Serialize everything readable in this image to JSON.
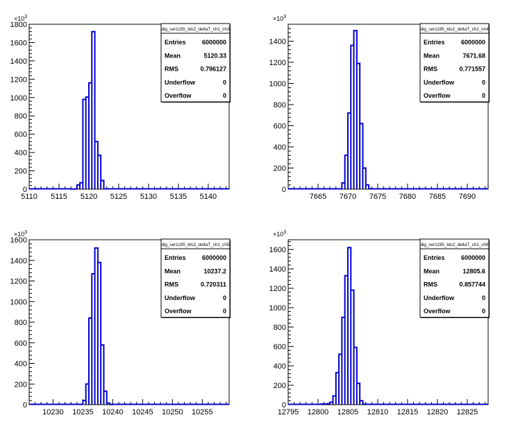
{
  "chart_data": [
    {
      "type": "histogram",
      "name": "dig_ser1195_tdc2_deltaT_ch1_ch3",
      "y_exponent": "3",
      "xlim": [
        5110,
        5143.5
      ],
      "ylim": [
        0,
        1800
      ],
      "x_ticks": [
        5110,
        5115,
        5120,
        5125,
        5130,
        5135,
        5140
      ],
      "x_tick_labels": [
        "5110",
        "5115",
        "5120",
        "5125",
        "5130",
        "5135",
        "5140"
      ],
      "y_ticks": [
        0,
        200,
        400,
        600,
        800,
        1000,
        1200,
        1400,
        1600,
        1800
      ],
      "y_tick_labels": [
        "0",
        "200",
        "400",
        "600",
        "800",
        "1000",
        "1200",
        "1400",
        "1600",
        "1800"
      ],
      "bins": [
        {
          "x0": 5117.0,
          "x1": 5118.0,
          "y": 2
        },
        {
          "x0": 5118.0,
          "x1": 5118.5,
          "y": 45
        },
        {
          "x0": 5118.5,
          "x1": 5119.0,
          "y": 70
        },
        {
          "x0": 5119.0,
          "x1": 5119.5,
          "y": 980
        },
        {
          "x0": 5119.5,
          "x1": 5120.0,
          "y": 1005
        },
        {
          "x0": 5120.0,
          "x1": 5120.5,
          "y": 1160
        },
        {
          "x0": 5120.5,
          "x1": 5121.0,
          "y": 1720
        },
        {
          "x0": 5121.0,
          "x1": 5121.5,
          "y": 520
        },
        {
          "x0": 5121.5,
          "x1": 5122.0,
          "y": 370
        },
        {
          "x0": 5122.0,
          "x1": 5122.5,
          "y": 95
        },
        {
          "x0": 5122.5,
          "x1": 5123.5,
          "y": 4
        }
      ],
      "stats": {
        "title": "dig_ser1195_tdc2_deltaT_ch1_ch3",
        "rows": [
          {
            "label": "Entries",
            "value": "6000000"
          },
          {
            "label": "Mean",
            "value": "5120.33"
          },
          {
            "label": "RMS",
            "value": "0.796127"
          },
          {
            "label": "Underflow",
            "value": "0"
          },
          {
            "label": "Overflow",
            "value": "0"
          }
        ]
      },
      "line_color": "#0000cc"
    },
    {
      "type": "histogram",
      "name": "dig_ser1195_tdc2_deltaT_ch1_ch4",
      "y_exponent": "3",
      "xlim": [
        7660,
        7693.5
      ],
      "ylim": [
        0,
        1560
      ],
      "x_ticks": [
        7665,
        7670,
        7675,
        7680,
        7685,
        7690
      ],
      "x_tick_labels": [
        "7665",
        "7670",
        "7675",
        "7680",
        "7685",
        "7690"
      ],
      "y_ticks": [
        0,
        200,
        400,
        600,
        800,
        1000,
        1200,
        1400
      ],
      "y_tick_labels": [
        "0",
        "200",
        "400",
        "600",
        "800",
        "1000",
        "1200",
        "1400"
      ],
      "bins": [
        {
          "x0": 7668.5,
          "x1": 7669.0,
          "y": 3
        },
        {
          "x0": 7669.0,
          "x1": 7669.5,
          "y": 60
        },
        {
          "x0": 7669.5,
          "x1": 7670.0,
          "y": 320
        },
        {
          "x0": 7670.0,
          "x1": 7670.5,
          "y": 720
        },
        {
          "x0": 7670.5,
          "x1": 7671.0,
          "y": 1360
        },
        {
          "x0": 7671.0,
          "x1": 7671.5,
          "y": 1500
        },
        {
          "x0": 7671.5,
          "x1": 7672.0,
          "y": 1190
        },
        {
          "x0": 7672.0,
          "x1": 7672.5,
          "y": 620
        },
        {
          "x0": 7672.5,
          "x1": 7673.0,
          "y": 200
        },
        {
          "x0": 7673.0,
          "x1": 7673.5,
          "y": 40
        },
        {
          "x0": 7673.5,
          "x1": 7674.0,
          "y": 4
        }
      ],
      "stats": {
        "title": "dig_ser1195_tdc2_deltaT_ch1_ch4",
        "rows": [
          {
            "label": "Entries",
            "value": "6000000"
          },
          {
            "label": "Mean",
            "value": "7671.68"
          },
          {
            "label": "RMS",
            "value": "0.771557"
          },
          {
            "label": "Underflow",
            "value": "0"
          },
          {
            "label": "Overflow",
            "value": "0"
          }
        ]
      },
      "line_color": "#0000cc"
    },
    {
      "type": "histogram",
      "name": "dig_ser1195_tdc2_deltaT_ch1_ch5",
      "y_exponent": "3",
      "xlim": [
        10226,
        10259.5
      ],
      "ylim": [
        0,
        1600
      ],
      "x_ticks": [
        10230,
        10235,
        10240,
        10245,
        10250,
        10255
      ],
      "x_tick_labels": [
        "10230",
        "10235",
        "10240",
        "10245",
        "10250",
        "10255"
      ],
      "y_ticks": [
        0,
        200,
        400,
        600,
        800,
        1000,
        1200,
        1400,
        1600
      ],
      "y_tick_labels": [
        "0",
        "200",
        "400",
        "600",
        "800",
        "1000",
        "1200",
        "1400",
        "1600"
      ],
      "bins": [
        {
          "x0": 10234.5,
          "x1": 10235.0,
          "y": 3
        },
        {
          "x0": 10235.0,
          "x1": 10235.5,
          "y": 40
        },
        {
          "x0": 10235.5,
          "x1": 10236.0,
          "y": 200
        },
        {
          "x0": 10236.0,
          "x1": 10236.5,
          "y": 840
        },
        {
          "x0": 10236.5,
          "x1": 10237.0,
          "y": 1270
        },
        {
          "x0": 10237.0,
          "x1": 10237.5,
          "y": 1520
        },
        {
          "x0": 10237.5,
          "x1": 10238.0,
          "y": 1380
        },
        {
          "x0": 10238.0,
          "x1": 10238.5,
          "y": 580
        },
        {
          "x0": 10238.5,
          "x1": 10239.0,
          "y": 130
        },
        {
          "x0": 10239.0,
          "x1": 10239.5,
          "y": 15
        },
        {
          "x0": 10239.5,
          "x1": 10240.0,
          "y": 2
        }
      ],
      "stats": {
        "title": "dig_ser1195_tdc2_deltaT_ch1_ch5",
        "rows": [
          {
            "label": "Entries",
            "value": "6000000"
          },
          {
            "label": "Mean",
            "value": "10237.2"
          },
          {
            "label": "RMS",
            "value": "0.720311"
          },
          {
            "label": "Underflow",
            "value": "0"
          },
          {
            "label": "Overflow",
            "value": "0"
          }
        ]
      },
      "line_color": "#0000cc"
    },
    {
      "type": "histogram",
      "name": "dig_ser1195_tdc2_deltaT_ch1_ch6",
      "y_exponent": "3",
      "xlim": [
        12795,
        12828.5
      ],
      "ylim": [
        0,
        1700
      ],
      "x_ticks": [
        12795,
        12800,
        12805,
        12810,
        12815,
        12820,
        12825
      ],
      "x_tick_labels": [
        "12795",
        "12800",
        "12805",
        "12810",
        "12815",
        "12820",
        "12825"
      ],
      "y_ticks": [
        0,
        200,
        400,
        600,
        800,
        1000,
        1200,
        1400,
        1600
      ],
      "y_tick_labels": [
        "0",
        "200",
        "400",
        "600",
        "800",
        "1000",
        "1200",
        "1400",
        "1600"
      ],
      "bins": [
        {
          "x0": 12800.5,
          "x1": 12801.5,
          "y": 6
        },
        {
          "x0": 12801.5,
          "x1": 12802.0,
          "y": 10
        },
        {
          "x0": 12802.0,
          "x1": 12802.5,
          "y": 25
        },
        {
          "x0": 12802.5,
          "x1": 12803.0,
          "y": 90
        },
        {
          "x0": 12803.0,
          "x1": 12803.5,
          "y": 330
        },
        {
          "x0": 12803.5,
          "x1": 12804.0,
          "y": 520
        },
        {
          "x0": 12804.0,
          "x1": 12804.5,
          "y": 900
        },
        {
          "x0": 12804.5,
          "x1": 12805.0,
          "y": 1330
        },
        {
          "x0": 12805.0,
          "x1": 12805.5,
          "y": 1620
        },
        {
          "x0": 12805.5,
          "x1": 12806.0,
          "y": 1180
        },
        {
          "x0": 12806.0,
          "x1": 12806.5,
          "y": 590
        },
        {
          "x0": 12806.5,
          "x1": 12807.0,
          "y": 220
        },
        {
          "x0": 12807.0,
          "x1": 12807.5,
          "y": 40
        },
        {
          "x0": 12807.5,
          "x1": 12808.0,
          "y": 6
        }
      ],
      "stats": {
        "title": "dig_ser1195_tdc2_deltaT_ch1_ch6",
        "rows": [
          {
            "label": "Entries",
            "value": "6000000"
          },
          {
            "label": "Mean",
            "value": "12805.6"
          },
          {
            "label": "RMS",
            "value": "0.857744"
          },
          {
            "label": "Underflow",
            "value": "0"
          },
          {
            "label": "Overflow",
            "value": "0"
          }
        ]
      },
      "line_color": "#0000cc"
    }
  ]
}
